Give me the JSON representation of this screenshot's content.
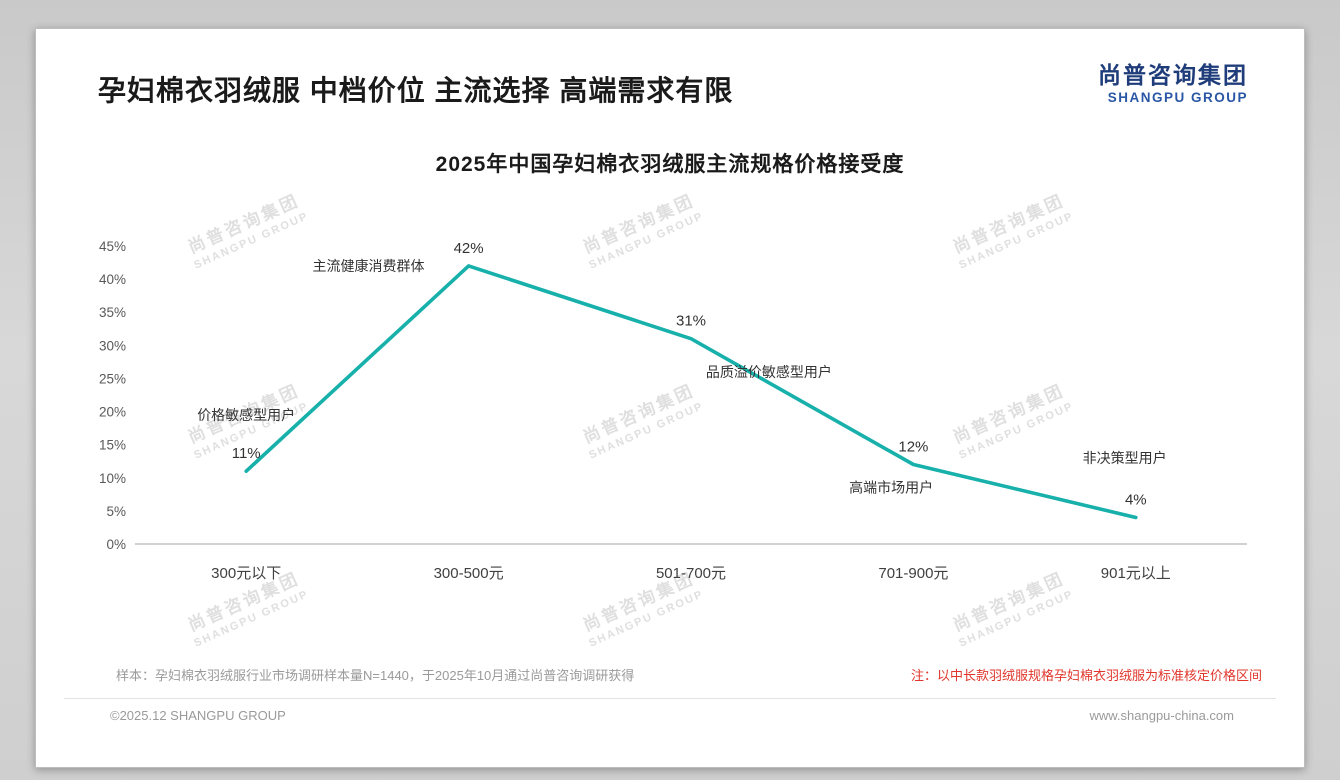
{
  "header": {
    "title": "孕妇棉衣羽绒服 中档价位 主流选择 高端需求有限",
    "logo_cn": "尚普咨询集团",
    "logo_en": "SHANGPU GROUP"
  },
  "watermark": {
    "cn": "尚普咨询集团",
    "en": "SHANGPU GROUP"
  },
  "footer": {
    "sample_note": "样本：孕妇棉衣羽绒服行业市场调研样本量N=1440，于2025年10月通过尚普咨询调研获得",
    "price_note": "注：以中长款羽绒服规格孕妇棉衣羽绒服为标准核定价格区间",
    "copyright": "©2025.12 SHANGPU GROUP",
    "website": "www.shangpu-china.com"
  },
  "colors": {
    "line_teal": "#17b0ab",
    "brand_navy": "#1f3d7a",
    "note_red": "#e0362b"
  },
  "chart_data": {
    "type": "line",
    "title": "2025年中国孕妇棉衣羽绒服主流规格价格接受度",
    "categories": [
      "300元以下",
      "300-500元",
      "501-700元",
      "701-900元",
      "901元以上"
    ],
    "values": [
      11,
      42,
      31,
      12,
      4
    ],
    "value_labels": [
      "11%",
      "42%",
      "31%",
      "12%",
      "4%"
    ],
    "xlabel": "",
    "ylabel": "",
    "ylim": [
      0,
      45
    ],
    "ytick_step": 5,
    "grid": false,
    "legend": "none",
    "line_color": "#17b0ab",
    "annotations": [
      {
        "text": "价格敏感型用户",
        "xi": 0.0,
        "yv": 19.5
      },
      {
        "text": "主流健康消费群体",
        "xi": 0.55,
        "yv": 42.0
      },
      {
        "text": "品质溢价敏感型用户",
        "xi": 2.35,
        "yv": 26.0
      },
      {
        "text": "高端市场用户",
        "xi": 2.9,
        "yv": 8.5
      },
      {
        "text": "非决策型用户",
        "xi": 3.95,
        "yv": 13.0
      }
    ]
  }
}
